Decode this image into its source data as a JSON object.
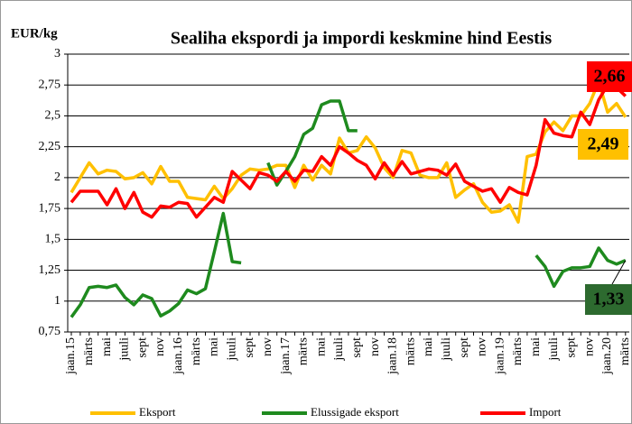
{
  "chart_data": {
    "type": "line",
    "title": "Sealiha ekspordi ja impordi keskmine hind Eestis",
    "y_label": "EUR/kg",
    "categories": [
      "jaan.15",
      null,
      "märts",
      null,
      "mai",
      null,
      "juuli",
      null,
      "sept",
      null,
      "nov",
      null,
      "jaan.16",
      null,
      "märts",
      null,
      "mai",
      null,
      "juuli",
      null,
      "sept",
      null,
      "nov",
      null,
      "jaan.17",
      null,
      "märts",
      null,
      "mai",
      null,
      "juuli",
      null,
      "sept",
      null,
      "nov",
      null,
      "jaan.18",
      null,
      "märts",
      null,
      "mai",
      null,
      "juuli",
      null,
      "sept",
      null,
      "nov",
      null,
      "jaan.19",
      null,
      "märts",
      null,
      "mai",
      null,
      "juuli",
      null,
      "sept",
      null,
      "nov",
      null,
      "jaan.20",
      null,
      "märts"
    ],
    "series": [
      {
        "name": "Eksport",
        "color": "#ffc000",
        "end_label": "2,49",
        "label_fill": "#ffc000",
        "values": [
          1.88,
          2.0,
          2.12,
          2.03,
          2.06,
          2.05,
          1.99,
          2.0,
          2.04,
          1.95,
          2.09,
          1.97,
          1.97,
          1.84,
          1.83,
          1.82,
          1.93,
          1.83,
          1.91,
          2.02,
          2.07,
          2.06,
          2.07,
          2.1,
          2.1,
          1.92,
          2.1,
          1.98,
          2.1,
          2.03,
          2.32,
          2.2,
          2.22,
          2.33,
          2.24,
          2.08,
          2.0,
          2.22,
          2.2,
          2.02,
          2.0,
          2.0,
          2.12,
          1.84,
          1.9,
          1.95,
          1.8,
          1.72,
          1.73,
          1.78,
          1.64,
          2.17,
          2.19,
          2.37,
          2.45,
          2.38,
          2.5,
          2.5,
          2.6,
          2.78,
          2.53,
          2.6,
          2.49
        ]
      },
      {
        "name": "Elussigade eksport",
        "color": "#1e8a1e",
        "end_label": "1,33",
        "label_fill": "#2d6a2f",
        "values": [
          0.87,
          0.97,
          1.11,
          1.12,
          1.11,
          1.13,
          1.03,
          0.97,
          1.05,
          1.02,
          0.88,
          0.92,
          0.98,
          1.09,
          1.06,
          1.1,
          1.4,
          1.71,
          1.32,
          1.31,
          null,
          null,
          2.12,
          1.94,
          2.05,
          2.17,
          2.35,
          2.4,
          2.59,
          2.62,
          2.62,
          2.38,
          2.38,
          null,
          null,
          null,
          null,
          null,
          null,
          null,
          null,
          null,
          null,
          null,
          null,
          null,
          null,
          null,
          null,
          null,
          null,
          null,
          1.37,
          1.28,
          1.12,
          1.24,
          1.27,
          1.27,
          1.28,
          1.43,
          1.33,
          1.3,
          1.33
        ]
      },
      {
        "name": "Import",
        "color": "#ff0000",
        "end_label": "2,66",
        "label_fill": "#ff0000",
        "values": [
          1.8,
          1.89,
          1.89,
          1.89,
          1.78,
          1.91,
          1.75,
          1.88,
          1.72,
          1.68,
          1.77,
          1.76,
          1.8,
          1.79,
          1.68,
          1.76,
          1.84,
          1.8,
          2.05,
          1.98,
          1.91,
          2.04,
          2.02,
          1.97,
          2.05,
          1.97,
          2.06,
          2.05,
          2.17,
          2.1,
          2.25,
          2.2,
          2.14,
          2.1,
          1.99,
          2.12,
          2.02,
          2.13,
          2.03,
          2.05,
          2.07,
          2.06,
          2.02,
          2.11,
          1.97,
          1.93,
          1.89,
          1.91,
          1.8,
          1.92,
          1.88,
          1.86,
          2.1,
          2.47,
          2.36,
          2.34,
          2.33,
          2.53,
          2.43,
          2.63,
          2.75,
          2.73,
          2.66
        ]
      }
    ],
    "ylim": [
      0.75,
      3
    ],
    "yticks": [
      {
        "value": 0.75,
        "label": "0,75"
      },
      1,
      {
        "value": 1.25,
        "label": "1,25"
      },
      {
        "value": 1.5,
        "label": "1,5"
      },
      {
        "value": 1.75,
        "label": "1,75"
      },
      2,
      {
        "value": 2.25,
        "label": "2,25"
      },
      {
        "value": 2.5,
        "label": "2,5"
      },
      {
        "value": 2.75,
        "label": "2,75"
      },
      3
    ],
    "grid": true
  }
}
